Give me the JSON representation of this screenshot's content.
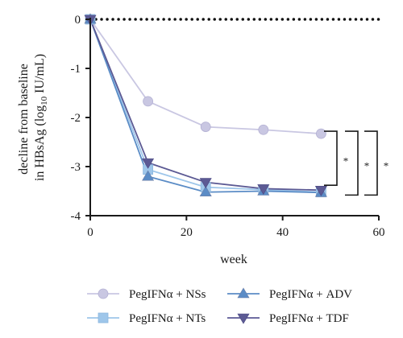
{
  "chart_data": {
    "type": "line",
    "title": "",
    "xlabel": "week",
    "ylabel_line1": "decline from baseline",
    "ylabel_line2_prefix": "in HBsAg (log",
    "ylabel_line2_sub": "10",
    "ylabel_line2_suffix": " IU/mL)",
    "xlim": [
      0,
      60
    ],
    "ylim": [
      -4,
      0
    ],
    "x_ticks": [
      0,
      20,
      40,
      60
    ],
    "y_ticks": [
      0,
      -1,
      -2,
      -3,
      -4
    ],
    "x_tick_labels": [
      "0",
      "20",
      "40",
      "60"
    ],
    "y_tick_labels": [
      "0",
      "-1",
      "-2",
      "-3",
      "-4"
    ],
    "grid": false,
    "baseline": {
      "y": 0,
      "style": "dotted"
    },
    "legend_position": "bottom",
    "x": [
      0,
      12,
      24,
      36,
      48
    ],
    "series": [
      {
        "name": "PegIFNα + NSs",
        "marker": "circle",
        "color": "#c9c7e2",
        "values": [
          0,
          -1.67,
          -2.19,
          -2.25,
          -2.33
        ]
      },
      {
        "name": "PegIFNα + NTs",
        "marker": "square",
        "color": "#9ec6ea",
        "values": [
          0,
          -3.06,
          -3.42,
          -3.47,
          -3.52
        ]
      },
      {
        "name": "PegIFNα + ADV",
        "marker": "triangle-up",
        "color": "#5b8cc6",
        "values": [
          0,
          -3.2,
          -3.52,
          -3.5,
          -3.53
        ]
      },
      {
        "name": "PegIFNα + TDF",
        "marker": "triangle-down",
        "color": "#5c5a94",
        "values": [
          0,
          -2.92,
          -3.32,
          -3.45,
          -3.48
        ]
      }
    ],
    "significance": [
      {
        "label": "*",
        "from": -2.28,
        "to": -3.38
      },
      {
        "label": "*",
        "from": -2.28,
        "to": -3.58
      },
      {
        "label": "*",
        "from": -2.28,
        "to": -3.58
      }
    ]
  }
}
